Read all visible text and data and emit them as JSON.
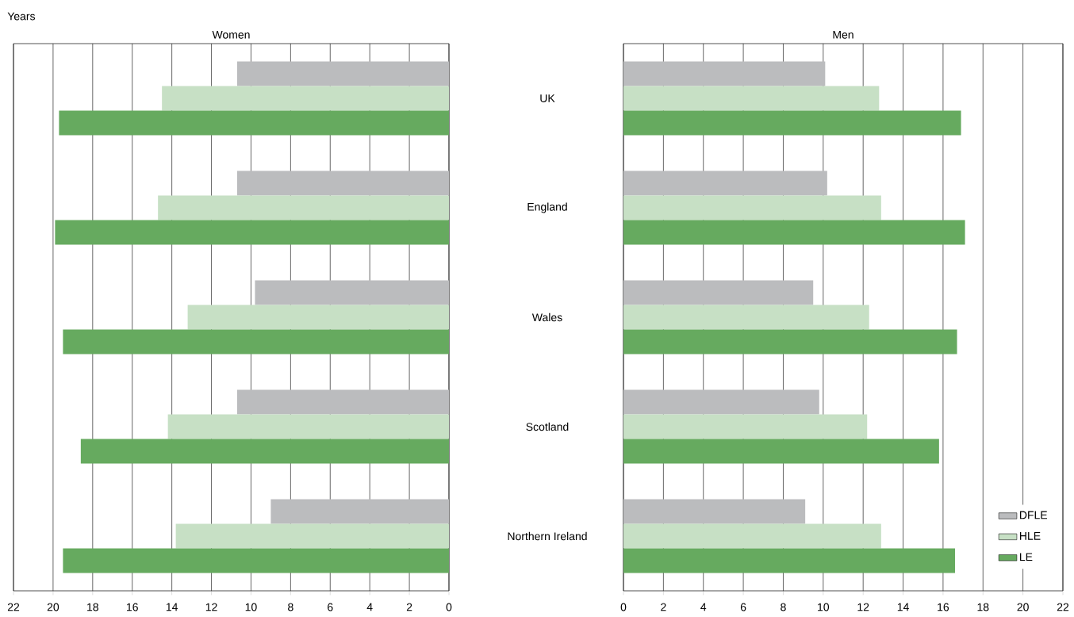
{
  "chart_data": [
    {
      "type": "bar",
      "orientation": "horizontal",
      "title": "Women",
      "annotations": [
        "Years"
      ],
      "categories": [
        null,
        null,
        null,
        null,
        null
      ],
      "tick_labels": "x",
      "grid": "x",
      "xlim": [
        22,
        0
      ],
      "xticks": [
        22,
        20,
        18,
        16,
        14,
        12,
        10,
        8,
        6,
        4,
        2,
        0
      ],
      "series": [
        {
          "color": "#bbbcbe",
          "values": [
            10.7,
            10.7,
            9.8,
            10.7,
            9.0
          ]
        },
        {
          "color": "#c7e0c5",
          "values": [
            14.5,
            14.7,
            13.2,
            14.2,
            13.8
          ]
        },
        {
          "color": "#66aa5f",
          "values": [
            19.7,
            19.9,
            19.5,
            18.6,
            19.5
          ]
        }
      ]
    },
    {
      "type": "bar",
      "orientation": "horizontal",
      "title": "Men",
      "categories": [
        "UK",
        "England",
        "Wales",
        "Scotland",
        "Northern Ireland"
      ],
      "grid": "x",
      "legend": "bottom right",
      "xlim": [
        0,
        22
      ],
      "xticks": [
        0,
        2,
        4,
        6,
        8,
        10,
        12,
        14,
        16,
        18,
        20,
        22
      ],
      "series": [
        {
          "name": "DFLE",
          "color": "#bbbcbe",
          "values": [
            10.1,
            10.2,
            9.5,
            9.8,
            9.1
          ]
        },
        {
          "name": "HLE",
          "color": "#c7e0c5",
          "values": [
            12.8,
            12.9,
            12.3,
            12.2,
            12.9
          ]
        },
        {
          "name": "LE",
          "color": "#66aa5f",
          "values": [
            16.9,
            17.1,
            16.7,
            15.8,
            16.6
          ]
        }
      ]
    }
  ]
}
